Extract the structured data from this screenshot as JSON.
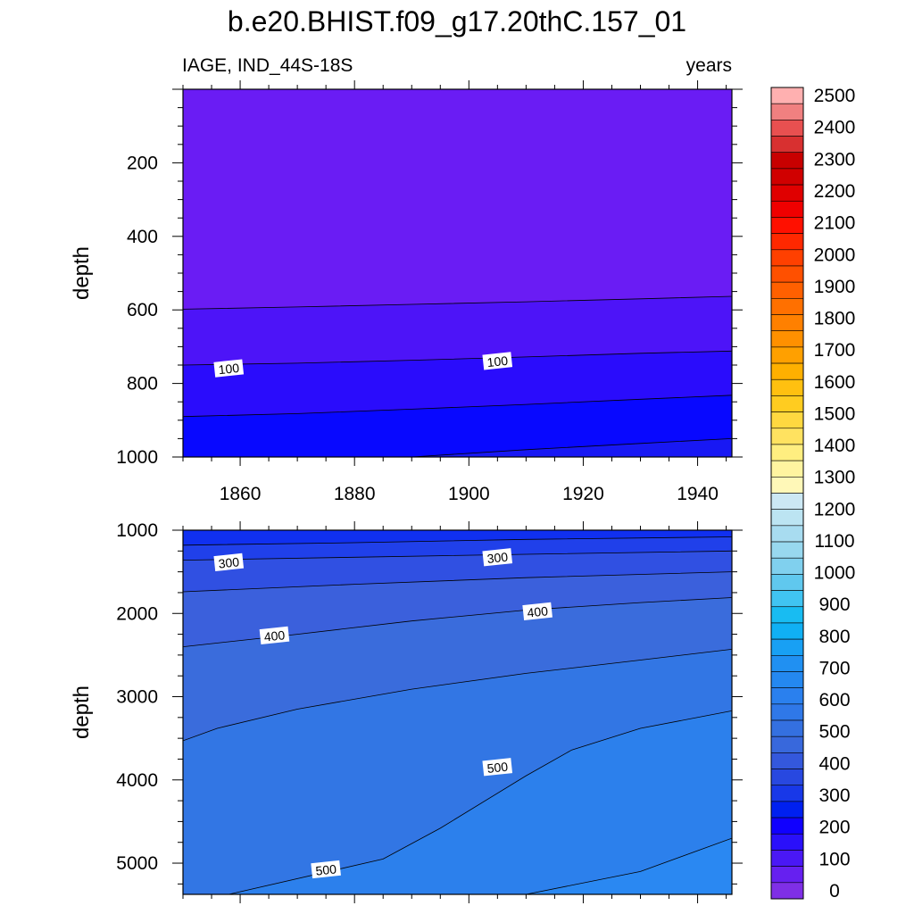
{
  "title": "b.e20.BHIST.f09_g17.20thC.157_01",
  "left_string": "IAGE, IND_44S-18S",
  "right_string": "years",
  "chart_data": [
    {
      "type": "heatmap",
      "panel": "upper",
      "ylabel": "depth",
      "x_range": [
        1850,
        1946
      ],
      "y_range": [
        0,
        1000
      ],
      "y_reversed": true,
      "x_ticks": [
        1860,
        1880,
        1900,
        1920,
        1940
      ],
      "y_ticks": [
        200,
        400,
        600,
        800,
        1000
      ],
      "contour_levels_labeled": [
        {
          "label": "100",
          "x": 1858,
          "y": 760
        },
        {
          "label": "100",
          "x": 1905,
          "y": 740
        }
      ],
      "contours": [
        {
          "level": 50,
          "points": [
            [
              1850,
              598
            ],
            [
              1870,
              592
            ],
            [
              1890,
              585
            ],
            [
              1910,
              578
            ],
            [
              1930,
              570
            ],
            [
              1946,
              563
            ]
          ]
        },
        {
          "level": 100,
          "points": [
            [
              1850,
              750
            ],
            [
              1870,
              745
            ],
            [
              1890,
              737
            ],
            [
              1910,
              728
            ],
            [
              1930,
              718
            ],
            [
              1946,
              712
            ]
          ]
        },
        {
          "level": 150,
          "points": [
            [
              1850,
              890
            ],
            [
              1870,
              882
            ],
            [
              1890,
              870
            ],
            [
              1910,
              857
            ],
            [
              1930,
              843
            ],
            [
              1946,
              832
            ]
          ]
        },
        {
          "level": 200,
          "points": [
            [
              1890,
              1000
            ],
            [
              1910,
              980
            ],
            [
              1930,
              963
            ],
            [
              1946,
              950
            ]
          ]
        }
      ]
    },
    {
      "type": "heatmap",
      "panel": "lower",
      "ylabel": "depth",
      "x_range": [
        1850,
        1946
      ],
      "y_range": [
        1000,
        5375
      ],
      "y_reversed": true,
      "x_ticks": [
        1860,
        1880,
        1900,
        1920,
        1940
      ],
      "y_ticks": [
        1000,
        2000,
        3000,
        4000,
        5000
      ],
      "contour_levels_labeled": [
        {
          "label": "300",
          "x": 1858,
          "y": 1390
        },
        {
          "label": "300",
          "x": 1905,
          "y": 1330
        },
        {
          "label": "400",
          "x": 1866,
          "y": 2270
        },
        {
          "label": "400",
          "x": 1912,
          "y": 1980
        },
        {
          "label": "500",
          "x": 1875,
          "y": 5080
        },
        {
          "label": "500",
          "x": 1905,
          "y": 3850
        }
      ],
      "contours": [
        {
          "level": 250,
          "points": [
            [
              1850,
              1180
            ],
            [
              1880,
              1150
            ],
            [
              1910,
              1110
            ],
            [
              1946,
              1080
            ]
          ]
        },
        {
          "level": 300,
          "points": [
            [
              1850,
              1360
            ],
            [
              1880,
              1325
            ],
            [
              1910,
              1290
            ],
            [
              1946,
              1250
            ]
          ]
        },
        {
          "level": 350,
          "points": [
            [
              1850,
              1740
            ],
            [
              1880,
              1650
            ],
            [
              1910,
              1570
            ],
            [
              1946,
              1500
            ]
          ]
        },
        {
          "level": 400,
          "points": [
            [
              1850,
              2400
            ],
            [
              1870,
              2250
            ],
            [
              1890,
              2090
            ],
            [
              1910,
              1960
            ],
            [
              1930,
              1870
            ],
            [
              1946,
              1810
            ]
          ]
        },
        {
          "level": 450,
          "points": [
            [
              1850,
              3530
            ],
            [
              1856,
              3380
            ],
            [
              1870,
              3150
            ],
            [
              1890,
              2910
            ],
            [
              1910,
              2720
            ],
            [
              1930,
              2560
            ],
            [
              1946,
              2430
            ]
          ]
        },
        {
          "level": 500,
          "points": [
            [
              1858,
              5375
            ],
            [
              1885,
              4950
            ],
            [
              1895,
              4580
            ],
            [
              1910,
              3950
            ],
            [
              1918,
              3640
            ],
            [
              1930,
              3380
            ],
            [
              1946,
              3170
            ]
          ]
        },
        {
          "level": 550,
          "points": [
            [
              1910,
              5375
            ],
            [
              1930,
              5100
            ],
            [
              1946,
              4700
            ]
          ]
        }
      ]
    }
  ],
  "colorbar": {
    "labels": [
      "0",
      "100",
      "200",
      "300",
      "400",
      "500",
      "600",
      "700",
      "800",
      "900",
      "1000",
      "1100",
      "1200",
      "1300",
      "1400",
      "1500",
      "1600",
      "1700",
      "1800",
      "1900",
      "2000",
      "2100",
      "2200",
      "2300",
      "2400",
      "2500"
    ],
    "colors": [
      "#7f2fe6",
      "#6620f0",
      "#4a18f5",
      "#2a10fa",
      "#1000ff",
      "#0020f0",
      "#1838e8",
      "#2848e0",
      "#3458dc",
      "#3868dc",
      "#3470e0",
      "#2f78e8",
      "#2a80ee",
      "#2488f0",
      "#2090f2",
      "#18a0f4",
      "#10b0f4",
      "#18bcf2",
      "#40c4f2",
      "#60c8ee",
      "#80d0ee",
      "#98d8ef",
      "#a8dcf0",
      "#bce4f2",
      "#cce8f4",
      "#fff8b8",
      "#fff4a0",
      "#ffee80",
      "#ffe260",
      "#ffd840",
      "#ffcc20",
      "#ffc010",
      "#ffb000",
      "#ffa000",
      "#ff9000",
      "#ff8000",
      "#ff7000",
      "#ff6000",
      "#ff5000",
      "#ff4000",
      "#ff2800",
      "#ff1000",
      "#f00000",
      "#e00000",
      "#d00000",
      "#c80000",
      "#d83030",
      "#e85050",
      "#f08080",
      "#ffb0b0"
    ]
  }
}
